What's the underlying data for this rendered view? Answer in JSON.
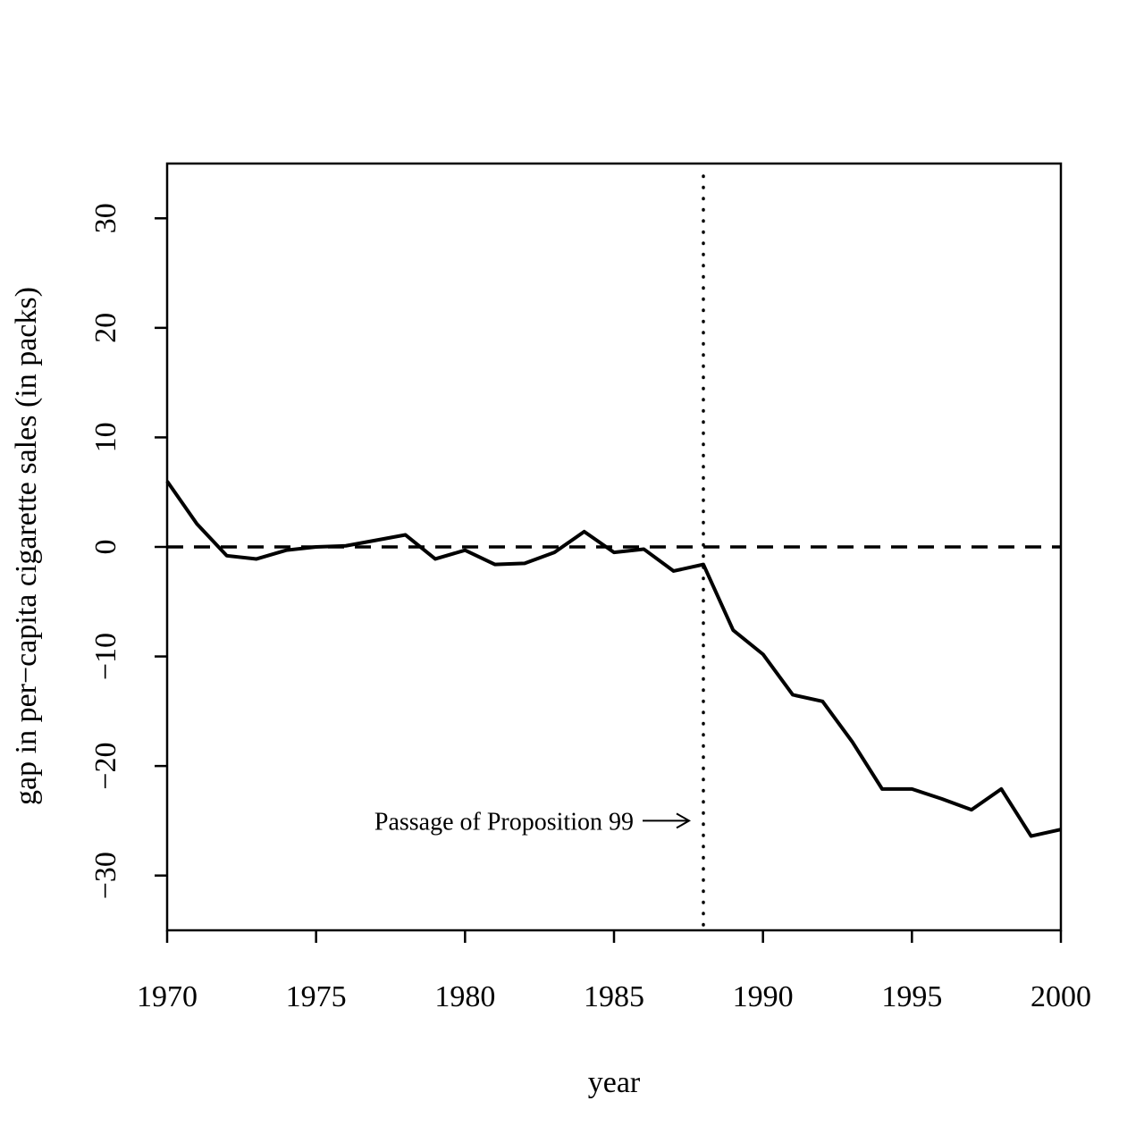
{
  "chart_data": {
    "type": "line",
    "title": "",
    "xlabel": "year",
    "ylabel": "gap in per−capita cigarette sales (in packs)",
    "xlim": [
      1970,
      2000
    ],
    "ylim": [
      -35,
      35
    ],
    "x_ticks": [
      1970,
      1975,
      1980,
      1985,
      1990,
      1995,
      2000
    ],
    "x_tick_labels": [
      "1970",
      "1975",
      "1980",
      "1985",
      "1990",
      "1995",
      "2000"
    ],
    "y_ticks": [
      -30,
      -20,
      -10,
      0,
      10,
      20,
      30
    ],
    "y_tick_labels": [
      "−30",
      "−20",
      "−10",
      "0",
      "10",
      "20",
      "30"
    ],
    "grid": false,
    "series": [
      {
        "x": [
          1970,
          1971,
          1972,
          1973,
          1974,
          1975,
          1976,
          1977,
          1978,
          1979,
          1980,
          1981,
          1982,
          1983,
          1984,
          1985,
          1986,
          1987,
          1988,
          1989,
          1990,
          1991,
          1992,
          1993,
          1994,
          1995,
          1996,
          1997,
          1998,
          1999,
          2000
        ],
        "values": [
          6.0,
          2.1,
          -0.8,
          -1.1,
          -0.3,
          0.0,
          0.1,
          0.6,
          1.1,
          -1.1,
          -0.3,
          -1.6,
          -1.5,
          -0.5,
          1.4,
          -0.5,
          -0.2,
          -2.2,
          -1.6,
          -7.6,
          -9.8,
          -13.5,
          -14.1,
          -17.8,
          -22.1,
          -22.1,
          -23.0,
          -24.0,
          -22.1,
          -26.4,
          -25.8
        ],
        "color": "#000000",
        "style": "solid"
      }
    ],
    "reference_lines": [
      {
        "orientation": "horizontal",
        "value": 0,
        "style": "dashed"
      },
      {
        "orientation": "vertical",
        "value": 1988,
        "style": "dotted"
      }
    ],
    "annotations": [
      {
        "text": "Passage of Proposition 99",
        "x": 1988,
        "y": -25,
        "arrow": true
      }
    ]
  }
}
